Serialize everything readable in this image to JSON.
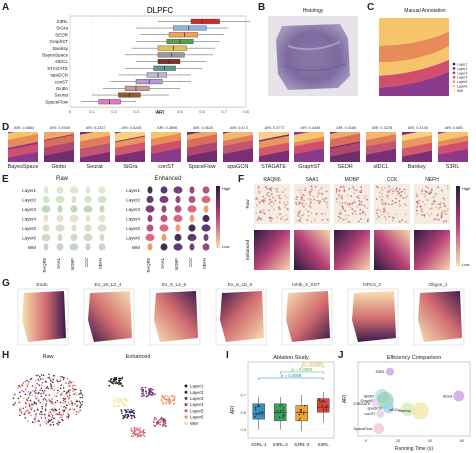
{
  "panels": {
    "A": "A",
    "B": "B",
    "C": "C",
    "D": "D",
    "E": "E",
    "F": "F",
    "G": "G",
    "H": "H",
    "I": "I",
    "J": "J"
  },
  "panel_a": {
    "title": "DLPFC",
    "xlabel": "ARI",
    "methods": [
      "S3RL",
      "SiGra",
      "SEDR",
      "GraphST",
      "Banksy",
      "BayesSpace",
      "stDCL",
      "STAGATE",
      "spaGCN",
      "conST",
      "Giotto",
      "Seurat",
      "SpaceFlow"
    ],
    "colors": [
      "#d62728",
      "#8fb4dd",
      "#f5a054",
      "#59a14f",
      "#e8c14a",
      "#9a9a9a",
      "#8b2c2c",
      "#5b9a8b",
      "#c5b0d5",
      "#b39cd6",
      "#c49c94",
      "#a0522d",
      "#e377c2"
    ],
    "medians": [
      0.6,
      0.54,
      0.52,
      0.5,
      0.47,
      0.46,
      0.45,
      0.43,
      0.4,
      0.36,
      0.3,
      0.27,
      0.18
    ],
    "q1": [
      0.55,
      0.47,
      0.45,
      0.44,
      0.4,
      0.4,
      0.4,
      0.38,
      0.35,
      0.3,
      0.25,
      0.22,
      0.13
    ],
    "q3": [
      0.68,
      0.62,
      0.58,
      0.56,
      0.53,
      0.52,
      0.5,
      0.48,
      0.44,
      0.42,
      0.36,
      0.32,
      0.23
    ],
    "wlo": [
      0.4,
      0.3,
      0.32,
      0.3,
      0.28,
      0.25,
      0.3,
      0.25,
      0.22,
      0.18,
      0.15,
      0.1,
      0.05
    ],
    "whi": [
      0.82,
      0.72,
      0.7,
      0.68,
      0.66,
      0.65,
      0.62,
      0.6,
      0.55,
      0.55,
      0.5,
      0.45,
      0.3
    ],
    "ticks": [
      "0",
      "0.1",
      "0.2",
      "0.3",
      "0.4",
      "0.5",
      "0.6",
      "0.7",
      "0.8"
    ]
  },
  "panel_b": {
    "title": "Histology"
  },
  "panel_c": {
    "title": "Manual Annotation",
    "legend": [
      "Layer1",
      "Layer2",
      "Layer3",
      "Layer4",
      "Layer5",
      "Layer6",
      "WM"
    ]
  },
  "panel_d": {
    "tiles": [
      {
        "name": "BayesSpace",
        "ari": "ARI: 0.3884"
      },
      {
        "name": "Giotto",
        "ari": "ARI: 0.4945"
      },
      {
        "name": "Seurat",
        "ari": "ARI: 0.2327"
      },
      {
        "name": "SiGra",
        "ari": "ARI: 0.5245"
      },
      {
        "name": "conST",
        "ari": "ARI: 0.3896"
      },
      {
        "name": "SpaceFlow",
        "ari": "ARI: 0.0625"
      },
      {
        "name": "spaGCN",
        "ari": "ARI: 0.473"
      },
      {
        "name": "STAGATE",
        "ari": "ARI: 0.3777"
      },
      {
        "name": "GraphST",
        "ari": "ARI: 0.4454"
      },
      {
        "name": "SEDR",
        "ari": "ARI: 0.4185"
      },
      {
        "name": "stDCL",
        "ari": "ARI: 0.3278"
      },
      {
        "name": "Banksy",
        "ari": "ARI: 0.4145"
      },
      {
        "name": "S3RL",
        "ari": "ARI: 0.685"
      }
    ]
  },
  "panel_e": {
    "raw_title": "Raw",
    "enh_title": "Enhanced",
    "layers": [
      "Layer1",
      "Layer2",
      "Layer3",
      "Layer4",
      "Layer5",
      "Layer6",
      "WM"
    ],
    "genes": [
      "RAQR6",
      "SAA1",
      "MOBP",
      "CCK",
      "NEFH"
    ],
    "high": "High",
    "low": "Low"
  },
  "panel_f": {
    "genes": [
      "RAQR6",
      "SAA1",
      "MOBP",
      "CCK",
      "NEFH"
    ],
    "row_raw": "Raw",
    "row_enh": "Enhanced",
    "high": "High",
    "low": "Low"
  },
  "panel_g": {
    "titles": [
      "Endo",
      "Ex_10_L2_4",
      "Ex_6_L4_6",
      "Ex_8_L5_6",
      "Inhib_5_SST",
      "OPCs_2",
      "Oligos_1"
    ]
  },
  "panel_h": {
    "raw_title": "Raw",
    "enh_title": "Enhanced",
    "legend": [
      "Layer1",
      "Layer2",
      "Layer3",
      "Layer4",
      "Layer5",
      "Layer6",
      "WM"
    ],
    "colors": [
      "#1f1f1f",
      "#3b1e5a",
      "#6a2a6e",
      "#a23b6d",
      "#d8576b",
      "#f28e5c",
      "#f6e3a3"
    ]
  },
  "panel_i": {
    "title": "Ablation Study",
    "ylabel": "ARI",
    "categories": [
      "S3RL-1",
      "S3RL-2",
      "S3RL-3",
      "S3RL"
    ],
    "colors": [
      "#3b8ec4",
      "#3aa060",
      "#f0a235",
      "#d9453a"
    ],
    "q1": [
      0.56,
      0.55,
      0.55,
      0.6
    ],
    "q3": [
      0.65,
      0.65,
      0.64,
      0.68
    ],
    "med": [
      0.59,
      0.6,
      0.6,
      0.63
    ],
    "wlo": [
      0.5,
      0.5,
      0.49,
      0.54
    ],
    "whi": [
      0.69,
      0.69,
      0.7,
      0.72
    ],
    "ticks": [
      "0.5",
      "0.6",
      "0.7"
    ],
    "pvals": [
      "p = 0.0208",
      "p = 0.0258",
      "p = 0.0088"
    ],
    "pcolors": [
      "#e0a02a",
      "#4caf50",
      "#2e86c1"
    ]
  },
  "panel_j": {
    "title": "Efficiency Comparison",
    "xlabel": "Running Time (s)",
    "ylabel": "ARI",
    "xticks": [
      "0",
      "20",
      "40",
      "60"
    ],
    "points": [
      {
        "name": "S3RL",
        "x": 15,
        "y": 0.685
      },
      {
        "name": "SiGra",
        "x": 58,
        "y": 0.52
      },
      {
        "name": "SEDR",
        "x": 10,
        "y": 0.52
      },
      {
        "name": "GraphST",
        "x": 12,
        "y": 0.49
      },
      {
        "name": "STAGATE",
        "x": 6,
        "y": 0.47
      },
      {
        "name": "spaGCN",
        "x": 14,
        "y": 0.44
      },
      {
        "name": "stDCL",
        "x": 26,
        "y": 0.43
      },
      {
        "name": "Banksy",
        "x": 34,
        "y": 0.42
      },
      {
        "name": "conST",
        "x": 9,
        "y": 0.4
      },
      {
        "name": "SpaceFlow",
        "x": 8,
        "y": 0.3
      }
    ],
    "colors": [
      "#c79be0",
      "#c79be0",
      "#b3d9ee",
      "#8fd1a8",
      "#e6d3f2",
      "#9bd3e8",
      "#d0ecb8",
      "#f4e4a0",
      "#e3c8f0",
      "#f7c0d6"
    ]
  }
}
